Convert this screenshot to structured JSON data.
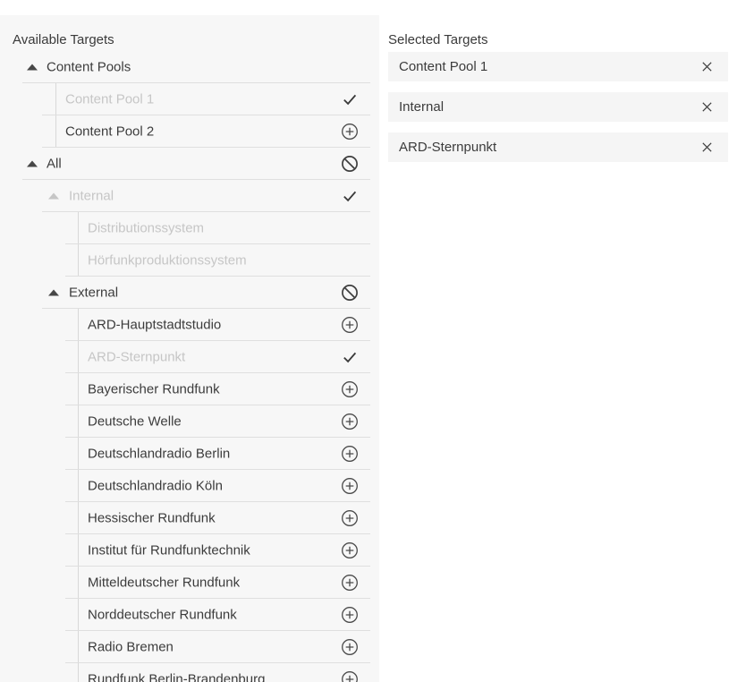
{
  "left_panel": {
    "title": "Available Targets",
    "tree": [
      {
        "label": "Content Pools",
        "type": "group",
        "level": 0,
        "state": "enabled",
        "icon": "none",
        "expanded": true
      },
      {
        "label": "Content Pool 1",
        "type": "leaf",
        "level": 1,
        "state": "disabled",
        "icon": "check"
      },
      {
        "label": "Content Pool 2",
        "type": "leaf",
        "level": 1,
        "state": "enabled",
        "icon": "add"
      },
      {
        "label": "All",
        "type": "group",
        "level": 0,
        "state": "enabled",
        "icon": "block",
        "expanded": true
      },
      {
        "label": "Internal",
        "type": "group",
        "level": 1,
        "state": "disabled",
        "icon": "check",
        "expanded": true
      },
      {
        "label": "Distributionssystem",
        "type": "leaf",
        "level": 2,
        "state": "disabled",
        "icon": "none"
      },
      {
        "label": "Hörfunkproduktionssystem",
        "type": "leaf",
        "level": 2,
        "state": "disabled",
        "icon": "none"
      },
      {
        "label": "External",
        "type": "group",
        "level": 1,
        "state": "enabled",
        "icon": "block",
        "expanded": true
      },
      {
        "label": "ARD-Hauptstadtstudio",
        "type": "leaf",
        "level": 2,
        "state": "enabled",
        "icon": "add"
      },
      {
        "label": "ARD-Sternpunkt",
        "type": "leaf",
        "level": 2,
        "state": "disabled",
        "icon": "check"
      },
      {
        "label": "Bayerischer Rundfunk",
        "type": "leaf",
        "level": 2,
        "state": "enabled",
        "icon": "add"
      },
      {
        "label": "Deutsche Welle",
        "type": "leaf",
        "level": 2,
        "state": "enabled",
        "icon": "add"
      },
      {
        "label": "Deutschlandradio Berlin",
        "type": "leaf",
        "level": 2,
        "state": "enabled",
        "icon": "add"
      },
      {
        "label": "Deutschlandradio Köln",
        "type": "leaf",
        "level": 2,
        "state": "enabled",
        "icon": "add"
      },
      {
        "label": "Hessischer Rundfunk",
        "type": "leaf",
        "level": 2,
        "state": "enabled",
        "icon": "add"
      },
      {
        "label": "Institut für Rundfunktechnik",
        "type": "leaf",
        "level": 2,
        "state": "enabled",
        "icon": "add"
      },
      {
        "label": "Mitteldeutscher Rundfunk",
        "type": "leaf",
        "level": 2,
        "state": "enabled",
        "icon": "add"
      },
      {
        "label": "Norddeutscher Rundfunk",
        "type": "leaf",
        "level": 2,
        "state": "enabled",
        "icon": "add"
      },
      {
        "label": "Radio Bremen",
        "type": "leaf",
        "level": 2,
        "state": "enabled",
        "icon": "add"
      },
      {
        "label": "Rundfunk Berlin-Brandenburg",
        "type": "leaf",
        "level": 2,
        "state": "enabled",
        "icon": "add"
      }
    ]
  },
  "right_panel": {
    "title": "Selected Targets",
    "selected": [
      {
        "label": "Content Pool 1"
      },
      {
        "label": "Internal"
      },
      {
        "label": "ARD-Sternpunkt"
      }
    ]
  },
  "colors": {
    "left_panel_bg": "#f7f7f7",
    "chip_bg": "#f5f5f5",
    "divider": "#dfdfdf",
    "guide_line": "#d8d8d8",
    "text": "#3c3c3c",
    "text_disabled": "#c6c6c6",
    "icon": "#424242"
  }
}
